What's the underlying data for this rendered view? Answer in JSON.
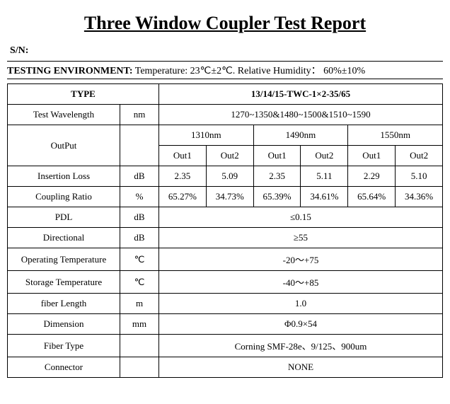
{
  "title": "Three Window Coupler Test Report",
  "sn_label": "S/N:",
  "env_label": "TESTING ENVIRONMENT:",
  "env_text": "Temperature: 23℃±2℃. Relative Humidity： 60%±10%",
  "type_label": "TYPE",
  "type_value": "13/14/15-TWC-1×2-35/65",
  "wavelength": {
    "label": "Test Wavelength",
    "unit": "nm",
    "value": "1270~1350&1480~1500&1510~1590"
  },
  "output": {
    "label": "OutPut",
    "wls": [
      "1310nm",
      "1490nm",
      "1550nm"
    ],
    "outs": [
      "Out1",
      "Out2",
      "Out1",
      "Out2",
      "Out1",
      "Out2"
    ]
  },
  "insertion_loss": {
    "label": "Insertion Loss",
    "unit": "dB",
    "v": [
      "2.35",
      "5.09",
      "2.35",
      "5.11",
      "2.29",
      "5.10"
    ]
  },
  "coupling_ratio": {
    "label": "Coupling Ratio",
    "unit": "%",
    "v": [
      "65.27%",
      "34.73%",
      "65.39%",
      "34.61%",
      "65.64%",
      "34.36%"
    ]
  },
  "pdl": {
    "label": "PDL",
    "unit": "dB",
    "value": "≤0.15"
  },
  "directional": {
    "label": "Directional",
    "unit": "dB",
    "value": "≥55"
  },
  "op_temp": {
    "label": "Operating Temperature",
    "unit": "℃",
    "value": "-20～+75"
  },
  "st_temp": {
    "label": "Storage Temperature",
    "unit": "℃",
    "value": "-40～+85"
  },
  "fiber_len": {
    "label": "fiber Length",
    "unit": "m",
    "value": "1.0"
  },
  "dimension": {
    "label": "Dimension",
    "unit": "mm",
    "value": "Φ0.9×54"
  },
  "fiber_type": {
    "label": "Fiber Type",
    "unit": "",
    "value": "Corning SMF-28e、9/125、900um"
  },
  "connector": {
    "label": "Connector",
    "unit": "",
    "value": "NONE"
  }
}
